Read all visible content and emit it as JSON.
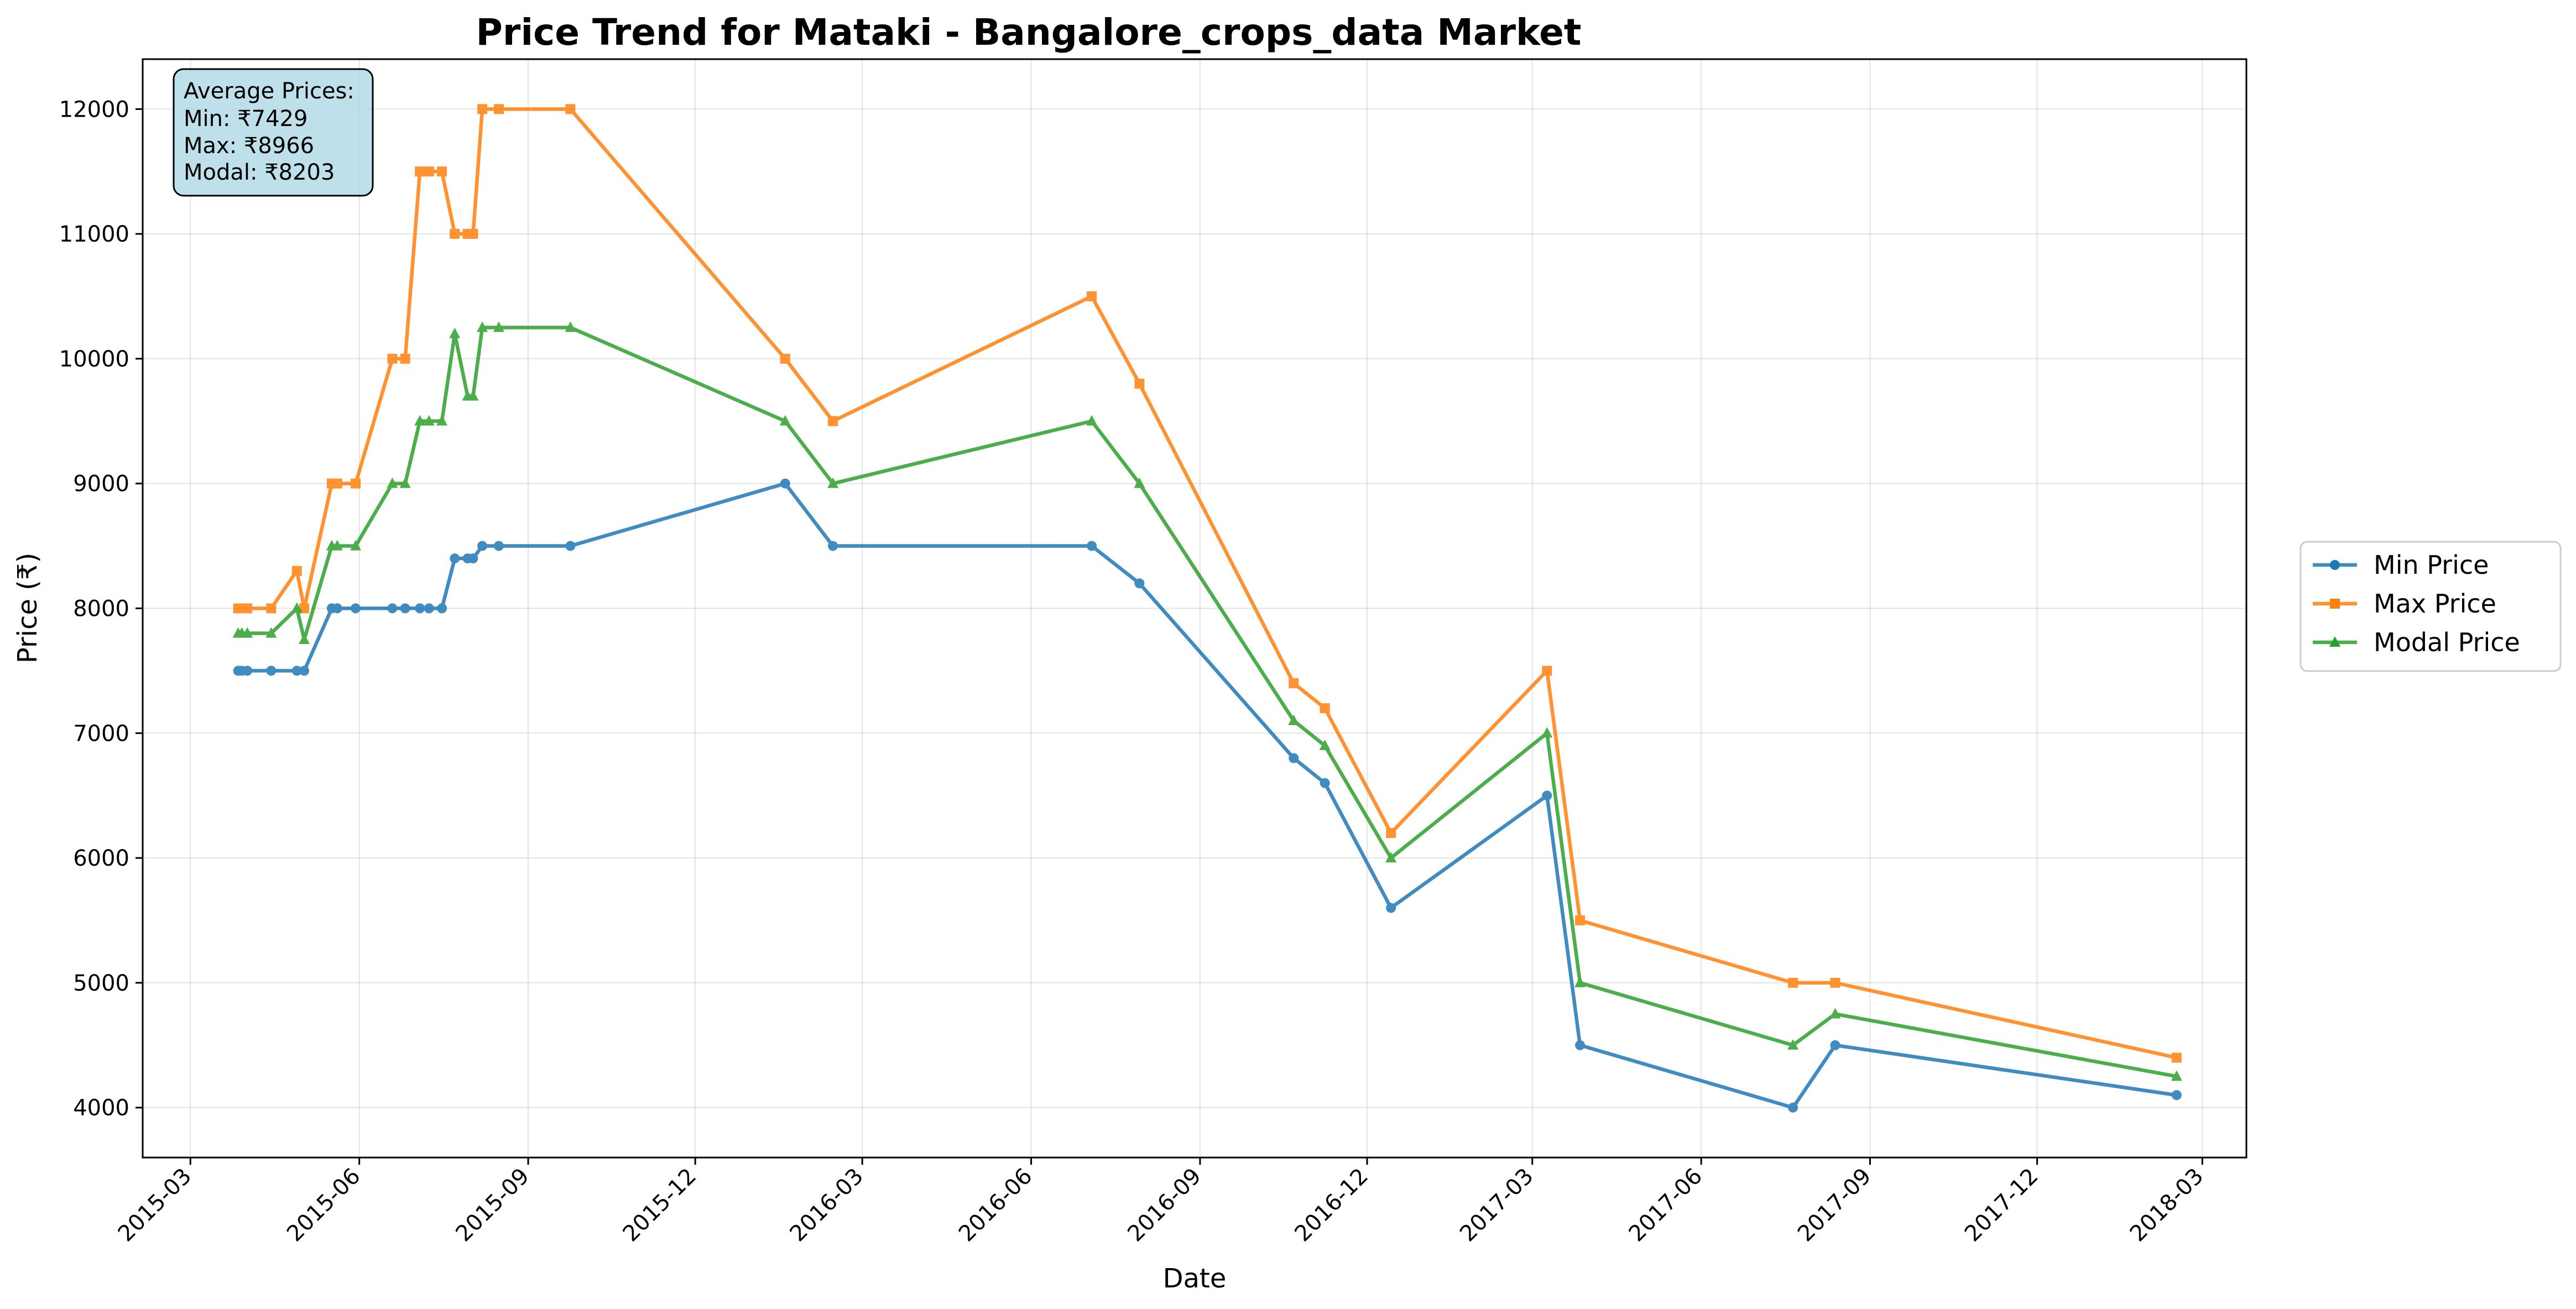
{
  "chart_data": {
    "type": "line",
    "title": "Price Trend for Mataki - Bangalore_crops_data Market",
    "xlabel": "Date",
    "ylabel": "Price (₹)",
    "grid": true,
    "legend_position": "right",
    "ylim": [
      3600,
      12400
    ],
    "xlim": [
      "2015-02-03",
      "2018-03-25"
    ],
    "y_ticks": [
      4000,
      5000,
      6000,
      7000,
      8000,
      9000,
      10000,
      11000,
      12000
    ],
    "x_ticks": [
      "2015-03",
      "2015-06",
      "2015-09",
      "2015-12",
      "2016-03",
      "2016-06",
      "2016-09",
      "2016-12",
      "2017-03",
      "2017-06",
      "2017-09",
      "2017-12",
      "2018-03"
    ],
    "annotation": {
      "heading": "Average Prices:",
      "lines": [
        "Min: ₹7429",
        "Max: ₹8966",
        "Modal: ₹8203"
      ]
    },
    "series": [
      {
        "name": "Min Price",
        "color": "#1f77b4",
        "marker": "circle",
        "points": [
          [
            "2015-03-27",
            7500
          ],
          [
            "2015-03-29",
            7500
          ],
          [
            "2015-04-01",
            7500
          ],
          [
            "2015-04-14",
            7500
          ],
          [
            "2015-04-28",
            7500
          ],
          [
            "2015-05-02",
            7500
          ],
          [
            "2015-05-17",
            8000
          ],
          [
            "2015-05-20",
            8000
          ],
          [
            "2015-05-30",
            8000
          ],
          [
            "2015-06-19",
            8000
          ],
          [
            "2015-06-26",
            8000
          ],
          [
            "2015-07-04",
            8000
          ],
          [
            "2015-07-09",
            8000
          ],
          [
            "2015-07-16",
            8000
          ],
          [
            "2015-07-23",
            8400
          ],
          [
            "2015-07-30",
            8400
          ],
          [
            "2015-08-02",
            8400
          ],
          [
            "2015-08-07",
            8500
          ],
          [
            "2015-08-16",
            8500
          ],
          [
            "2015-09-24",
            8500
          ],
          [
            "2016-01-19",
            9000
          ],
          [
            "2016-02-14",
            8500
          ],
          [
            "2016-07-04",
            8500
          ],
          [
            "2016-07-30",
            8200
          ],
          [
            "2016-10-22",
            6800
          ],
          [
            "2016-11-08",
            6600
          ],
          [
            "2016-12-14",
            5600
          ],
          [
            "2017-03-09",
            6500
          ],
          [
            "2017-03-27",
            4500
          ],
          [
            "2017-07-21",
            4000
          ],
          [
            "2017-08-13",
            4500
          ],
          [
            "2018-02-15",
            4100
          ]
        ]
      },
      {
        "name": "Max Price",
        "color": "#ff7f0e",
        "marker": "square",
        "points": [
          [
            "2015-03-27",
            8000
          ],
          [
            "2015-03-29",
            8000
          ],
          [
            "2015-04-01",
            8000
          ],
          [
            "2015-04-14",
            8000
          ],
          [
            "2015-04-28",
            8300
          ],
          [
            "2015-05-02",
            8000
          ],
          [
            "2015-05-17",
            9000
          ],
          [
            "2015-05-20",
            9000
          ],
          [
            "2015-05-30",
            9000
          ],
          [
            "2015-06-19",
            10000
          ],
          [
            "2015-06-26",
            10000
          ],
          [
            "2015-07-04",
            11500
          ],
          [
            "2015-07-09",
            11500
          ],
          [
            "2015-07-16",
            11500
          ],
          [
            "2015-07-23",
            11000
          ],
          [
            "2015-07-30",
            11000
          ],
          [
            "2015-08-02",
            11000
          ],
          [
            "2015-08-07",
            12000
          ],
          [
            "2015-08-16",
            12000
          ],
          [
            "2015-09-24",
            12000
          ],
          [
            "2016-01-19",
            10000
          ],
          [
            "2016-02-14",
            9500
          ],
          [
            "2016-07-04",
            10500
          ],
          [
            "2016-07-30",
            9800
          ],
          [
            "2016-10-22",
            7400
          ],
          [
            "2016-11-08",
            7200
          ],
          [
            "2016-12-14",
            6200
          ],
          [
            "2017-03-09",
            7500
          ],
          [
            "2017-03-27",
            5500
          ],
          [
            "2017-07-21",
            5000
          ],
          [
            "2017-08-13",
            5000
          ],
          [
            "2018-02-15",
            4400
          ]
        ]
      },
      {
        "name": "Modal Price",
        "color": "#2ca02c",
        "marker": "triangle",
        "points": [
          [
            "2015-03-27",
            7800
          ],
          [
            "2015-03-29",
            7800
          ],
          [
            "2015-04-01",
            7800
          ],
          [
            "2015-04-14",
            7800
          ],
          [
            "2015-04-28",
            8000
          ],
          [
            "2015-05-02",
            7750
          ],
          [
            "2015-05-17",
            8500
          ],
          [
            "2015-05-20",
            8500
          ],
          [
            "2015-05-30",
            8500
          ],
          [
            "2015-06-19",
            9000
          ],
          [
            "2015-06-26",
            9000
          ],
          [
            "2015-07-04",
            9500
          ],
          [
            "2015-07-09",
            9500
          ],
          [
            "2015-07-16",
            9500
          ],
          [
            "2015-07-23",
            10200
          ],
          [
            "2015-07-30",
            9700
          ],
          [
            "2015-08-02",
            9700
          ],
          [
            "2015-08-07",
            10250
          ],
          [
            "2015-08-16",
            10250
          ],
          [
            "2015-09-24",
            10250
          ],
          [
            "2016-01-19",
            9500
          ],
          [
            "2016-02-14",
            9000
          ],
          [
            "2016-07-04",
            9500
          ],
          [
            "2016-07-30",
            9000
          ],
          [
            "2016-10-22",
            7100
          ],
          [
            "2016-11-08",
            6900
          ],
          [
            "2016-12-14",
            6000
          ],
          [
            "2017-03-09",
            7000
          ],
          [
            "2017-03-27",
            5000
          ],
          [
            "2017-07-21",
            4500
          ],
          [
            "2017-08-13",
            4750
          ],
          [
            "2018-02-15",
            4250
          ]
        ]
      }
    ]
  }
}
